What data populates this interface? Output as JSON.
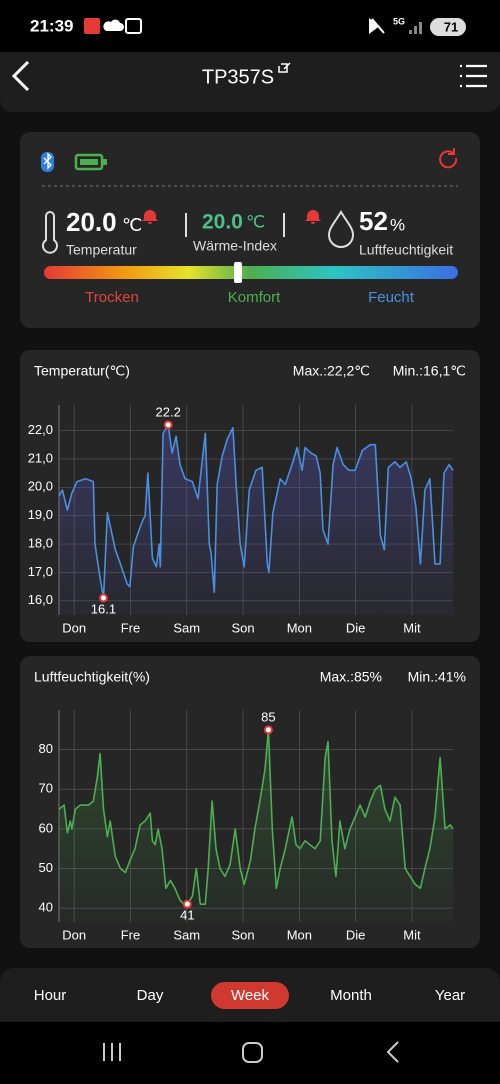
{
  "status_bar": {
    "time": "21:39",
    "network": "5G",
    "battery": "71"
  },
  "header": {
    "title": "TP357S"
  },
  "summary": {
    "temperature": {
      "value": "20.0",
      "unit": "℃",
      "label": "Temperatur"
    },
    "heat_index": {
      "value": "20.0",
      "unit": "℃",
      "label": "Wärme-Index"
    },
    "humidity": {
      "value": "52",
      "unit": "%",
      "label": "Luftfeuchtigkeit"
    },
    "scale_labels": [
      "Trocken",
      "Komfort",
      "Feucht"
    ]
  },
  "chart_data": [
    {
      "type": "line",
      "title": "Temperatur(℃)",
      "max_label": "Max.:22,2℃",
      "min_label": "Min.:16,1℃",
      "xlim": [
        -0.27,
        6.73
      ],
      "xticks": [
        {
          "value": 0,
          "label": "Don"
        },
        {
          "value": 1,
          "label": "Fre"
        },
        {
          "value": 2,
          "label": "Sam"
        },
        {
          "value": 3,
          "label": "Son"
        },
        {
          "value": 4,
          "label": "Mon"
        },
        {
          "value": 5,
          "label": "Die"
        },
        {
          "value": 6,
          "label": "Mit"
        }
      ],
      "ylim": [
        15.5,
        22.9
      ],
      "yticks": [
        {
          "value": 16,
          "label": "16,0"
        },
        {
          "value": 17,
          "label": "17,0"
        },
        {
          "value": 18,
          "label": "18,0"
        },
        {
          "value": 19,
          "label": "19,0"
        },
        {
          "value": 20,
          "label": "20,0"
        },
        {
          "value": 21,
          "label": "21,0"
        },
        {
          "value": 22,
          "label": "22,0"
        }
      ],
      "grid": true,
      "color": "#4a8fe0",
      "x": [
        -0.27,
        -0.21,
        -0.12,
        -0.04,
        0.05,
        0.2,
        0.34,
        0.37,
        0.46,
        0.52,
        0.59,
        0.73,
        0.82,
        0.94,
        0.99,
        1.05,
        1.12,
        1.21,
        1.26,
        1.31,
        1.39,
        1.46,
        1.51,
        1.53,
        1.58,
        1.67,
        1.74,
        1.81,
        1.88,
        1.97,
        2.1,
        2.2,
        2.33,
        2.4,
        2.43,
        2.49,
        2.54,
        2.63,
        2.72,
        2.82,
        2.88,
        2.95,
        3.02,
        3.11,
        3.23,
        3.34,
        3.43,
        3.46,
        3.53,
        3.66,
        3.75,
        3.87,
        3.96,
        4.05,
        4.1,
        4.21,
        4.3,
        4.37,
        4.42,
        4.51,
        4.6,
        4.67,
        4.78,
        4.88,
        4.99,
        5.12,
        5.26,
        5.35,
        5.44,
        5.51,
        5.58,
        5.7,
        5.79,
        5.9,
        5.99,
        6.07,
        6.15,
        6.23,
        6.32,
        6.41,
        6.5,
        6.57,
        6.66,
        6.73
      ],
      "values": [
        19.7,
        19.9,
        19.2,
        19.8,
        20.2,
        20.3,
        20.2,
        18.0,
        16.8,
        16.1,
        19.1,
        17.8,
        17.3,
        16.6,
        16.5,
        17.9,
        18.3,
        18.8,
        19.0,
        20.5,
        17.5,
        17.2,
        18.0,
        17.2,
        21.9,
        22.2,
        21.2,
        21.8,
        20.8,
        20.3,
        20.2,
        19.6,
        21.9,
        18.0,
        17.7,
        16.3,
        20.1,
        21.1,
        21.7,
        22.1,
        20.0,
        18.0,
        17.2,
        19.9,
        20.6,
        20.7,
        17.3,
        17.0,
        19.1,
        20.3,
        20.1,
        20.8,
        21.4,
        20.6,
        21.4,
        21.2,
        21.1,
        20.5,
        18.5,
        18.0,
        20.8,
        21.4,
        20.8,
        20.6,
        20.6,
        21.3,
        21.5,
        21.5,
        18.3,
        17.8,
        20.7,
        20.9,
        20.7,
        20.9,
        20.3,
        19.3,
        17.3,
        19.9,
        20.3,
        17.3,
        17.3,
        20.5,
        20.8,
        20.6
      ],
      "annotations": [
        {
          "x": 1.67,
          "value": 22.2
        },
        {
          "x": 0.52,
          "value": 16.1
        }
      ]
    },
    {
      "type": "line",
      "title": "Luftfeuchtigkeit(%)",
      "max_label": "Max.:85%",
      "min_label": "Min.:41%",
      "xlim": [
        -0.27,
        6.73
      ],
      "xticks": [
        {
          "value": 0,
          "label": "Don"
        },
        {
          "value": 1,
          "label": "Fre"
        },
        {
          "value": 2,
          "label": "Sam"
        },
        {
          "value": 3,
          "label": "Son"
        },
        {
          "value": 4,
          "label": "Mon"
        },
        {
          "value": 5,
          "label": "Die"
        },
        {
          "value": 6,
          "label": "Mit"
        }
      ],
      "ylim": [
        36.5,
        90
      ],
      "yticks": [
        40,
        50,
        60,
        70,
        80
      ],
      "grid": true,
      "color": "#4caf50",
      "x": [
        -0.27,
        -0.18,
        -0.12,
        -0.07,
        -0.04,
        0.02,
        0.11,
        0.25,
        0.34,
        0.41,
        0.46,
        0.52,
        0.59,
        0.64,
        0.73,
        0.82,
        0.91,
        0.99,
        1.08,
        1.17,
        1.26,
        1.35,
        1.39,
        1.44,
        1.49,
        1.56,
        1.63,
        1.71,
        1.79,
        1.88,
        1.95,
        2.01,
        2.1,
        2.17,
        2.24,
        2.33,
        2.38,
        2.45,
        2.52,
        2.59,
        2.68,
        2.77,
        2.86,
        2.95,
        3.02,
        3.13,
        3.21,
        3.3,
        3.39,
        3.45,
        3.52,
        3.59,
        3.66,
        3.75,
        3.87,
        3.94,
        4.01,
        4.1,
        4.19,
        4.28,
        4.37,
        4.46,
        4.51,
        4.58,
        4.65,
        4.72,
        4.81,
        4.9,
        4.99,
        5.08,
        5.17,
        5.26,
        5.35,
        5.44,
        5.52,
        5.61,
        5.7,
        5.79,
        5.88,
        5.97,
        6.06,
        6.15,
        6.23,
        6.32,
        6.41,
        6.5,
        6.59,
        6.68,
        6.73
      ],
      "values": [
        65,
        66,
        59,
        62,
        60,
        65,
        66,
        66,
        67,
        73,
        79,
        65,
        58,
        62,
        53,
        50,
        49,
        52,
        55,
        61,
        62,
        64,
        57,
        56,
        60,
        55,
        45,
        47,
        45,
        42,
        41,
        41,
        43,
        50,
        41,
        41,
        50,
        67,
        55,
        50,
        48,
        51,
        60,
        50,
        46,
        52,
        60,
        67,
        75,
        85,
        60,
        45,
        50,
        55,
        63,
        56,
        55,
        57,
        56,
        55,
        57,
        78,
        82,
        57,
        48,
        62,
        55,
        60,
        63,
        66,
        63,
        67,
        70,
        71,
        65,
        62,
        68,
        66,
        50,
        48,
        46,
        45,
        50,
        55,
        63,
        78,
        60,
        61,
        60
      ],
      "annotations": [
        {
          "x": 3.45,
          "value": 85
        },
        {
          "x": 2.01,
          "value": 41
        }
      ]
    }
  ],
  "tabs": {
    "items": [
      "Hour",
      "Day",
      "Week",
      "Month",
      "Year"
    ],
    "selected": 2
  }
}
